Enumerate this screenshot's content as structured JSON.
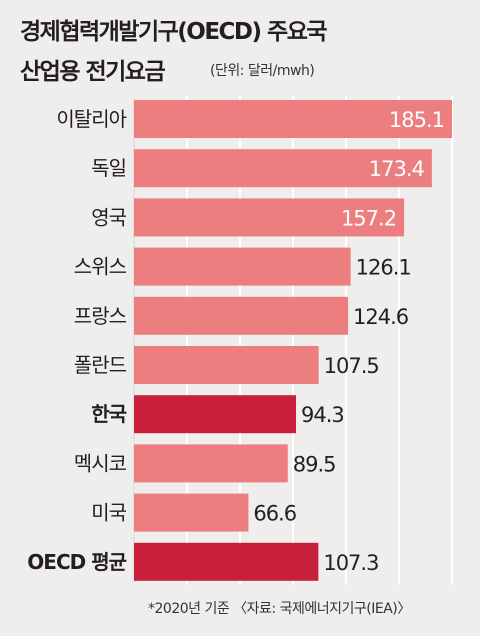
{
  "title": {
    "line1": "경제협력개발기구(OECD) 주요국",
    "line2": "산업용 전기요금",
    "unit": "(단위: 달러/mwh)"
  },
  "footnote": "*2020년 기준 〈자료: 국제에너지기구(IEA)〉",
  "colors": {
    "bar": "#ec7e80",
    "highlight": "#c8203c",
    "background": "#efeeec",
    "gridline": "#ffffff"
  },
  "chart_data": {
    "type": "bar",
    "orientation": "horizontal",
    "title": "경제협력개발기구(OECD) 주요국 산업용 전기요금",
    "unit": "달러/mwh",
    "categories": [
      "이탈리아",
      "독일",
      "영국",
      "스위스",
      "프랑스",
      "폴란드",
      "한국",
      "멕시코",
      "미국",
      "OECD 평균"
    ],
    "values": [
      185.1,
      173.4,
      157.2,
      126.1,
      124.6,
      107.5,
      94.3,
      89.5,
      66.6,
      107.3
    ],
    "value_labels": [
      "185.1",
      "173.4",
      "157.2",
      "126.1",
      "124.6",
      "107.5",
      "94.3",
      "89.5",
      "66.6",
      "107.3"
    ],
    "highlighted": [
      "한국",
      "OECD 평균"
    ],
    "bold_labels": [
      "한국",
      "OECD 평균"
    ],
    "labels_inside": [
      "이탈리아",
      "독일",
      "영국"
    ],
    "xlim": [
      0,
      185.1
    ],
    "grid": true
  }
}
